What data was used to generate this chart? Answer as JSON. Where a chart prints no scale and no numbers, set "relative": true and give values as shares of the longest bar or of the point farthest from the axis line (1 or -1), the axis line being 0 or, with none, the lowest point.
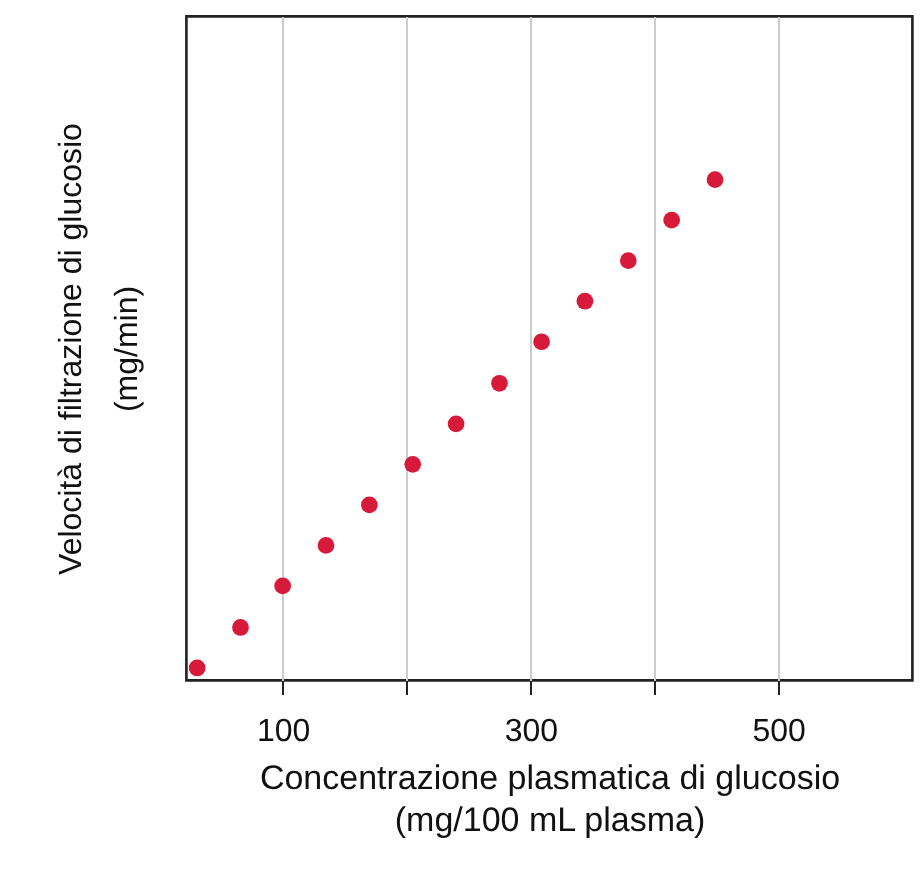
{
  "chart_data": {
    "type": "scatter",
    "xlabel": "Concentrazione plasmatica di glucosio\n(mg/100 mL plasma)",
    "ylabel": "Velocità di filtrazione di glucosio\n(mg/min)",
    "relative": true,
    "x": [
      31,
      66,
      100,
      135,
      170,
      205,
      240,
      275,
      309,
      344,
      379,
      414,
      449
    ],
    "series": [
      {
        "color": "#d7193a",
        "values": [
          0.024,
          0.105,
          0.188,
          0.269,
          0.35,
          0.431,
          0.512,
          0.593,
          0.676,
          0.757,
          0.838,
          0.919,
          1
        ]
      }
    ],
    "xlim": [
      22,
      608
    ],
    "xticks": [
      100,
      {
        "value": 200,
        "label": null
      },
      300,
      {
        "value": 400,
        "label": null
      },
      500
    ],
    "grid": "x",
    "marker": "circle"
  }
}
